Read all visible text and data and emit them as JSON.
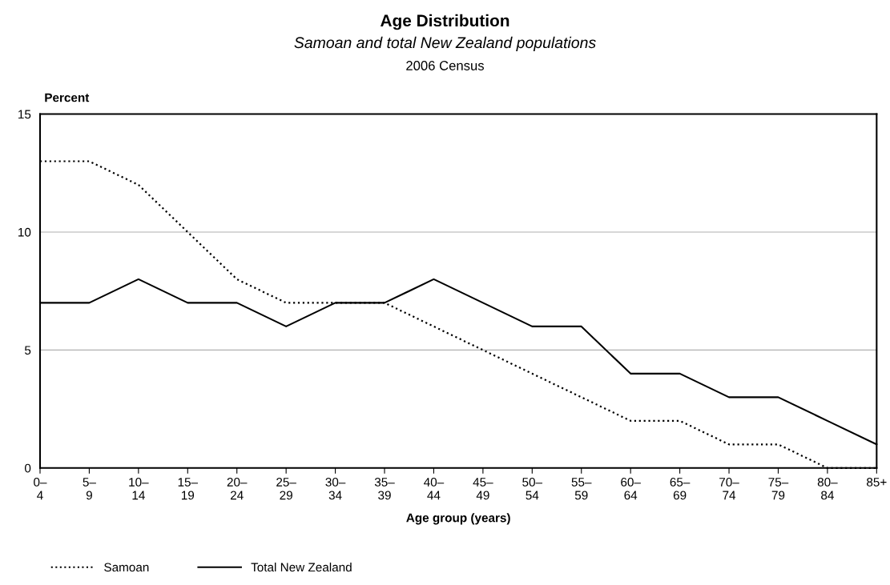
{
  "chart_data": {
    "type": "line",
    "title": "Age Distribution",
    "subtitle": "Samoan and total New Zealand populations",
    "annotations": [
      "2006 Census"
    ],
    "xlabel": "Age group (years)",
    "ylabel": "Percent",
    "categories": [
      "0–4",
      "5–9",
      "10–14",
      "15–19",
      "20–24",
      "25–29",
      "30–34",
      "35–39",
      "40–44",
      "45–49",
      "50–54",
      "55–59",
      "60–64",
      "65–69",
      "70–74",
      "75–79",
      "80–84",
      "85+"
    ],
    "series": [
      {
        "name": "Samoan",
        "color": "#000000",
        "line_style": "dotted",
        "values": [
          13,
          13,
          12,
          10,
          8,
          7,
          7,
          7,
          6,
          5,
          4,
          3,
          2,
          2,
          1,
          1,
          0,
          0
        ]
      },
      {
        "name": "Total New Zealand",
        "color": "#000000",
        "line_style": "solid",
        "values": [
          7,
          7,
          8,
          7,
          7,
          6,
          7,
          7,
          8,
          7,
          6,
          6,
          4,
          4,
          3,
          3,
          2,
          1
        ]
      }
    ],
    "ylim": [
      0,
      15
    ],
    "yticks": [
      0,
      5,
      10,
      15
    ],
    "grid": "y",
    "legend": "bottom left"
  }
}
